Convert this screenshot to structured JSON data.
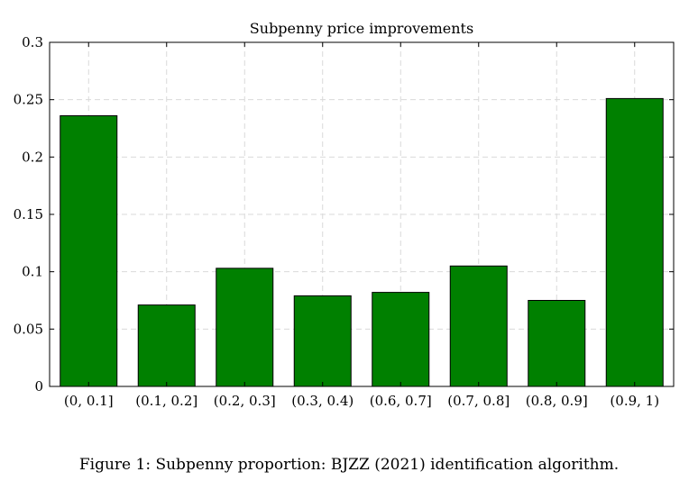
{
  "chart_data": {
    "type": "bar",
    "title": "Subpenny price improvements",
    "xlabel": "",
    "ylabel": "",
    "categories": [
      "(0, 0.1]",
      "(0.1, 0.2]",
      "(0.2, 0.3]",
      "(0.3, 0.4)",
      "(0.6, 0.7]",
      "(0.7, 0.8]",
      "(0.8, 0.9]",
      "(0.9, 1)"
    ],
    "values": [
      0.236,
      0.071,
      0.103,
      0.079,
      0.082,
      0.105,
      0.075,
      0.251
    ],
    "ylim": [
      0,
      0.3
    ],
    "yticks": [
      "0",
      "0.05",
      "0.1",
      "0.15",
      "0.2",
      "0.25",
      "0.3"
    ],
    "grid": true,
    "bar_color": "#008000"
  },
  "caption": "Figure 1: Subpenny proportion: BJZZ (2021) identification algorithm."
}
